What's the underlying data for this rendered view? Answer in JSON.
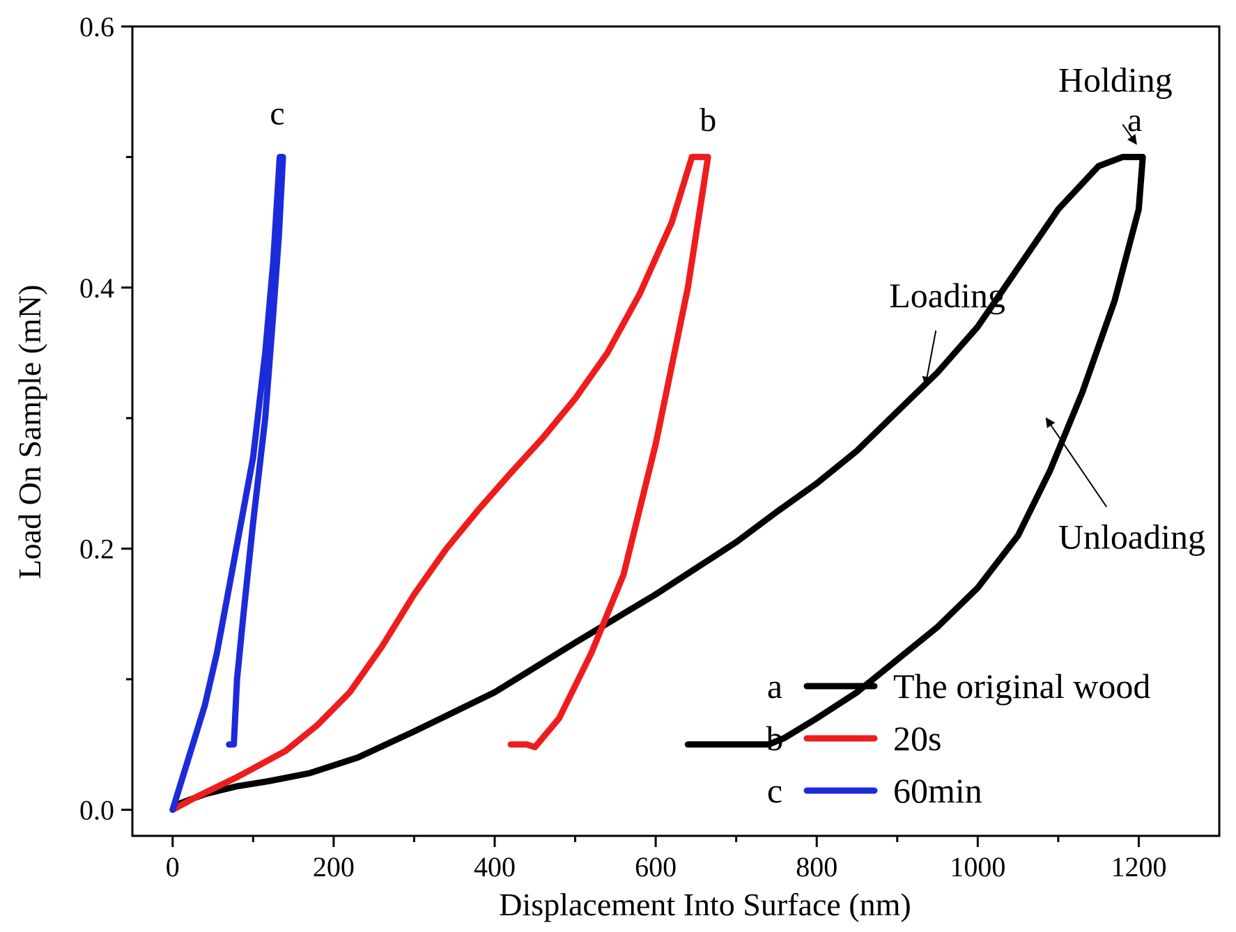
{
  "chart_data": {
    "type": "line",
    "title": "",
    "xlabel": "Displacement Into Surface (nm)",
    "ylabel": "Load On Sample (mN)",
    "xlim": [
      -50,
      1300
    ],
    "ylim": [
      -0.02,
      0.6
    ],
    "x_ticks": [
      0,
      200,
      400,
      600,
      800,
      1000,
      1200
    ],
    "x_tick_labels": [
      "0",
      "200",
      "400",
      "600",
      "800",
      "1000",
      "1200"
    ],
    "y_ticks": [
      0.0,
      0.2,
      0.4,
      0.6
    ],
    "y_tick_labels": [
      "0.0",
      "0.2",
      "0.4",
      "0.6"
    ],
    "grid": false,
    "legend_position": "bottom-right",
    "series": [
      {
        "id": "a",
        "name": "The original wood",
        "color": "#000000",
        "points": [
          [
            0,
            0
          ],
          [
            10,
            0.005
          ],
          [
            40,
            0.012
          ],
          [
            80,
            0.018
          ],
          [
            120,
            0.022
          ],
          [
            170,
            0.028
          ],
          [
            230,
            0.04
          ],
          [
            300,
            0.06
          ],
          [
            400,
            0.09
          ],
          [
            500,
            0.128
          ],
          [
            600,
            0.165
          ],
          [
            650,
            0.185
          ],
          [
            700,
            0.205
          ],
          [
            750,
            0.228
          ],
          [
            800,
            0.25
          ],
          [
            850,
            0.275
          ],
          [
            900,
            0.305
          ],
          [
            950,
            0.335
          ],
          [
            1000,
            0.37
          ],
          [
            1050,
            0.415
          ],
          [
            1100,
            0.46
          ],
          [
            1150,
            0.493
          ],
          [
            1180,
            0.5
          ],
          [
            1205,
            0.5
          ],
          [
            1200,
            0.46
          ],
          [
            1170,
            0.39
          ],
          [
            1130,
            0.32
          ],
          [
            1090,
            0.26
          ],
          [
            1050,
            0.21
          ],
          [
            1000,
            0.17
          ],
          [
            950,
            0.14
          ],
          [
            900,
            0.115
          ],
          [
            850,
            0.09
          ],
          [
            800,
            0.07
          ],
          [
            760,
            0.055
          ],
          [
            740,
            0.05
          ],
          [
            690,
            0.05
          ],
          [
            640,
            0.05
          ]
        ]
      },
      {
        "id": "b",
        "name": "20s",
        "color": "#ee1d1d",
        "points": [
          [
            0,
            0
          ],
          [
            30,
            0.01
          ],
          [
            80,
            0.025
          ],
          [
            140,
            0.045
          ],
          [
            180,
            0.065
          ],
          [
            220,
            0.09
          ],
          [
            260,
            0.125
          ],
          [
            300,
            0.165
          ],
          [
            340,
            0.2
          ],
          [
            380,
            0.23
          ],
          [
            420,
            0.258
          ],
          [
            460,
            0.285
          ],
          [
            500,
            0.315
          ],
          [
            540,
            0.35
          ],
          [
            580,
            0.395
          ],
          [
            620,
            0.45
          ],
          [
            645,
            0.5
          ],
          [
            665,
            0.5
          ],
          [
            640,
            0.4
          ],
          [
            600,
            0.28
          ],
          [
            560,
            0.18
          ],
          [
            520,
            0.12
          ],
          [
            480,
            0.07
          ],
          [
            450,
            0.048
          ],
          [
            440,
            0.05
          ],
          [
            420,
            0.05
          ]
        ]
      },
      {
        "id": "c",
        "name": "60min",
        "color": "#1b2bd9",
        "points": [
          [
            0,
            0
          ],
          [
            10,
            0.02
          ],
          [
            25,
            0.05
          ],
          [
            40,
            0.08
          ],
          [
            55,
            0.12
          ],
          [
            70,
            0.17
          ],
          [
            85,
            0.22
          ],
          [
            100,
            0.27
          ],
          [
            115,
            0.35
          ],
          [
            125,
            0.42
          ],
          [
            133,
            0.5
          ],
          [
            137,
            0.5
          ],
          [
            132,
            0.44
          ],
          [
            125,
            0.38
          ],
          [
            115,
            0.3
          ],
          [
            100,
            0.22
          ],
          [
            88,
            0.15
          ],
          [
            80,
            0.1
          ],
          [
            76,
            0.05
          ],
          [
            70,
            0.05
          ]
        ]
      }
    ],
    "curve_labels": [
      {
        "text": "a",
        "x": 1195,
        "y": 0.52
      },
      {
        "text": "b",
        "x": 665,
        "y": 0.52
      },
      {
        "text": "c",
        "x": 130,
        "y": 0.525
      }
    ],
    "annotations": [
      {
        "text": "Holding",
        "text_x": 1100,
        "text_y": 0.55,
        "arrow_from": [
          1180,
          0.525
        ],
        "arrow_to": [
          1197,
          0.51
        ]
      },
      {
        "text": "Loading",
        "text_x": 890,
        "text_y": 0.385,
        "arrow_from": [
          948,
          0.367
        ],
        "arrow_to": [
          935,
          0.325
        ]
      },
      {
        "text": "Unloading",
        "text_x": 1100,
        "text_y": 0.2,
        "arrow_from": [
          1160,
          0.232
        ],
        "arrow_to": [
          1085,
          0.3
        ]
      }
    ],
    "legend": [
      {
        "letter": "a",
        "label": "The original wood",
        "color": "#000000"
      },
      {
        "letter": "b",
        "label": "20s",
        "color": "#ee1d1d"
      },
      {
        "letter": "c",
        "label": "60min",
        "color": "#1b2bd9"
      }
    ]
  }
}
